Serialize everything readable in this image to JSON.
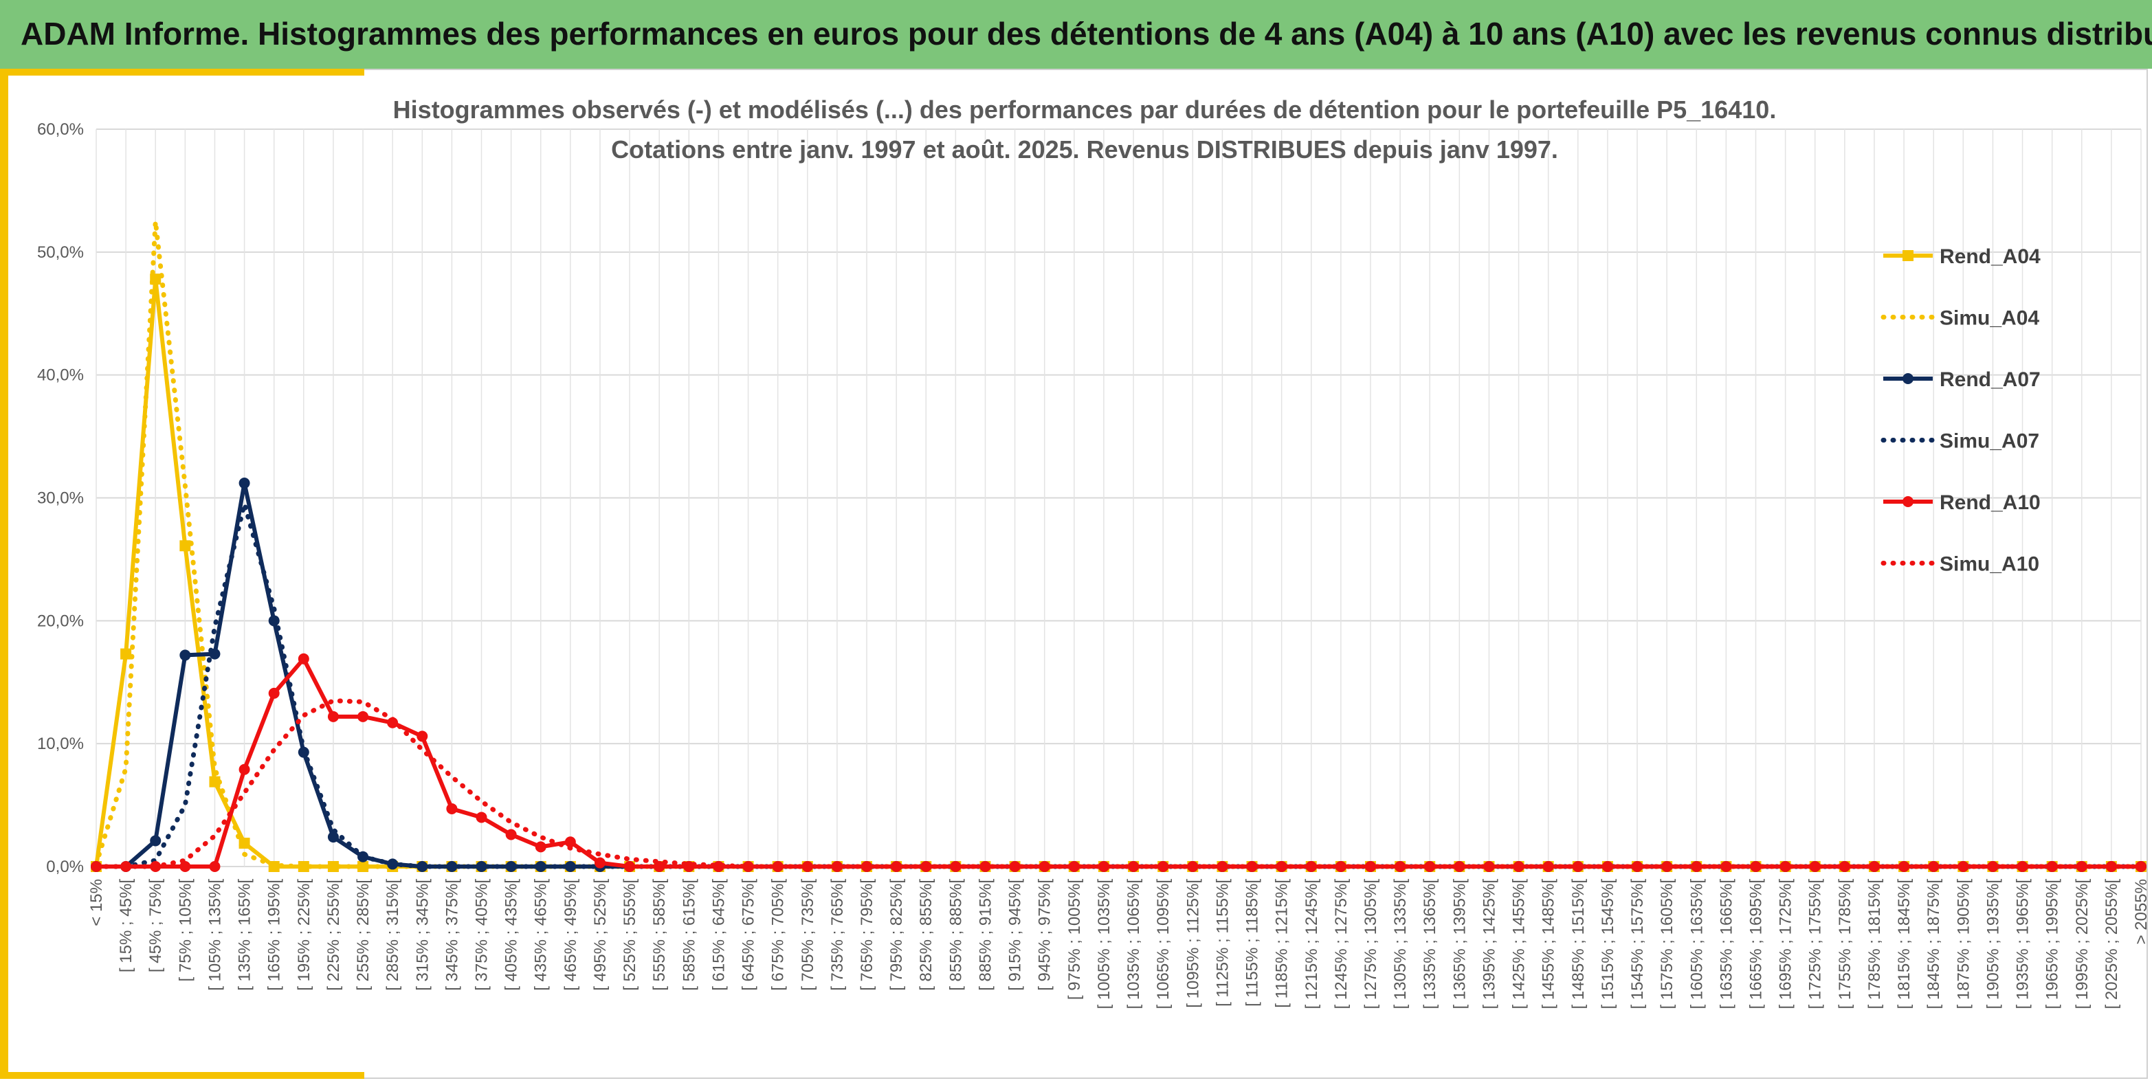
{
  "header": {
    "title": "ADAM Informe. Histogrammes des performances en euros pour des détentions de 4 ans (A04) à 10 ans (A10) avec les revenus connus distribués"
  },
  "chart_data": {
    "type": "line",
    "title_lines": [
      "Histogrammes observés (-) et modélisés (...) des performances par durées de détention pour le portefeuille P5_16410.",
      "Cotations entre janv. 1997 et août. 2025. Revenus DISTRIBUES depuis janv 1997."
    ],
    "ylim": [
      0,
      60
    ],
    "ytick_labels": [
      "0,0%",
      "10,0%",
      "20,0%",
      "30,0%",
      "40,0%",
      "50,0%",
      "60,0%"
    ],
    "grid": true,
    "legend_position": "right",
    "categories": [
      "< 15%",
      "[ 15% ; 45%[",
      "[ 45% ; 75%[",
      "[ 75% ; 105%[",
      "[ 105% ; 135%[",
      "[ 135% ; 165%[",
      "[ 165% ; 195%[",
      "[ 195% ; 225%[",
      "[ 225% ; 255%[",
      "[ 255% ; 285%[",
      "[ 285% ; 315%[",
      "[ 315% ; 345%[",
      "[ 345% ; 375%[",
      "[ 375% ; 405%[",
      "[ 405% ; 435%[",
      "[ 435% ; 465%[",
      "[ 465% ; 495%[",
      "[ 495% ; 525%[",
      "[ 525% ; 555%[",
      "[ 555% ; 585%[",
      "[ 585% ; 615%[",
      "[ 615% ; 645%[",
      "[ 645% ; 675%[",
      "[ 675% ; 705%[",
      "[ 705% ; 735%[",
      "[ 735% ; 765%[",
      "[ 765% ; 795%[",
      "[ 795% ; 825%[",
      "[ 825% ; 855%[",
      "[ 855% ; 885%[",
      "[ 885% ; 915%[",
      "[ 915% ; 945%[",
      "[ 945% ; 975%[",
      "[ 975% ; 1005%[",
      "[ 1005% ; 1035%[",
      "[ 1035% ; 1065%[",
      "[ 1065% ; 1095%[",
      "[ 1095% ; 1125%[",
      "[ 1125% ; 1155%[",
      "[ 1155% ; 1185%[",
      "[ 1185% ; 1215%[",
      "[ 1215% ; 1245%[",
      "[ 1245% ; 1275%[",
      "[ 1275% ; 1305%[",
      "[ 1305% ; 1335%[",
      "[ 1335% ; 1365%[",
      "[ 1365% ; 1395%[",
      "[ 1395% ; 1425%[",
      "[ 1425% ; 1455%[",
      "[ 1455% ; 1485%[",
      "[ 1485% ; 1515%[",
      "[ 1515% ; 1545%[",
      "[ 1545% ; 1575%[",
      "[ 1575% ; 1605%[",
      "[ 1605% ; 1635%[",
      "[ 1635% ; 1665%[",
      "[ 1665% ; 1695%[",
      "[ 1695% ; 1725%[",
      "[ 1725% ; 1755%[",
      "[ 1755% ; 1785%[",
      "[ 1785% ; 1815%[",
      "[ 1815% ; 1845%[",
      "[ 1845% ; 1875%[",
      "[ 1875% ; 1905%[",
      "[ 1905% ; 1935%[",
      "[ 1935% ; 1965%[",
      "[ 1965% ; 1995%[",
      "[ 1995% ; 2025%[",
      "[ 2025% ; 2055%[",
      "> 2055%"
    ],
    "series": [
      {
        "name": "Rend_A04",
        "style": "solid",
        "marker": "square",
        "color": "#f5c200",
        "values": [
          0,
          17.3,
          47.8,
          26.1,
          6.9,
          1.9,
          0,
          0,
          0,
          0,
          0,
          0,
          0,
          0,
          0,
          0,
          0,
          0,
          0,
          0,
          0,
          0,
          0,
          0,
          0,
          0,
          0,
          0,
          0,
          0,
          0,
          0,
          0,
          0,
          0,
          0,
          0,
          0,
          0,
          0,
          0,
          0,
          0,
          0,
          0,
          0,
          0,
          0,
          0,
          0,
          0,
          0,
          0,
          0,
          0,
          0,
          0,
          0,
          0,
          0,
          0,
          0,
          0,
          0,
          0,
          0,
          0,
          0,
          0,
          0
        ]
      },
      {
        "name": "Simu_A04",
        "style": "dotted",
        "marker": "none",
        "color": "#f5c200",
        "values": [
          0.2,
          8,
          52.5,
          31,
          8,
          1,
          0.1,
          0,
          0,
          0,
          0,
          0,
          0,
          0,
          0,
          0,
          0,
          0,
          0,
          0,
          0,
          0,
          0,
          0,
          0,
          0,
          0,
          0,
          0,
          0,
          0,
          0,
          0,
          0,
          0,
          0,
          0,
          0,
          0,
          0,
          0,
          0,
          0,
          0,
          0,
          0,
          0,
          0,
          0,
          0,
          0,
          0,
          0,
          0,
          0,
          0,
          0,
          0,
          0,
          0,
          0,
          0,
          0,
          0,
          0,
          0,
          0,
          0,
          0,
          0
        ]
      },
      {
        "name": "Rend_A07",
        "style": "solid",
        "marker": "circle",
        "color": "#0f2b5b",
        "values": [
          0,
          0,
          2.1,
          17.2,
          17.3,
          31.2,
          20,
          9.3,
          2.4,
          0.8,
          0.2,
          0,
          0,
          0,
          0,
          0,
          0,
          0,
          0,
          0,
          0,
          0,
          0,
          0,
          0,
          0,
          0,
          0,
          0,
          0,
          0,
          0,
          0,
          0,
          0,
          0,
          0,
          0,
          0,
          0,
          0,
          0,
          0,
          0,
          0,
          0,
          0,
          0,
          0,
          0,
          0,
          0,
          0,
          0,
          0,
          0,
          0,
          0,
          0,
          0,
          0,
          0,
          0,
          0,
          0,
          0,
          0,
          0,
          0,
          0
        ]
      },
      {
        "name": "Simu_A07",
        "style": "dotted",
        "marker": "none",
        "color": "#0f2b5b",
        "values": [
          0,
          0,
          0.5,
          5,
          19.5,
          29.5,
          21,
          9.5,
          3,
          0.8,
          0.2,
          0,
          0,
          0,
          0,
          0,
          0,
          0,
          0,
          0,
          0,
          0,
          0,
          0,
          0,
          0,
          0,
          0,
          0,
          0,
          0,
          0,
          0,
          0,
          0,
          0,
          0,
          0,
          0,
          0,
          0,
          0,
          0,
          0,
          0,
          0,
          0,
          0,
          0,
          0,
          0,
          0,
          0,
          0,
          0,
          0,
          0,
          0,
          0,
          0,
          0,
          0,
          0,
          0,
          0,
          0,
          0,
          0,
          0,
          0
        ]
      },
      {
        "name": "Rend_A10",
        "style": "solid",
        "marker": "circle",
        "color": "#ee1111",
        "values": [
          0,
          0,
          0,
          0,
          0,
          7.9,
          14.1,
          16.9,
          12.2,
          12.2,
          11.7,
          10.6,
          4.7,
          4,
          2.6,
          1.6,
          2,
          0.3,
          0,
          0,
          0,
          0,
          0,
          0,
          0,
          0,
          0,
          0,
          0,
          0,
          0,
          0,
          0,
          0,
          0,
          0,
          0,
          0,
          0,
          0,
          0,
          0,
          0,
          0,
          0,
          0,
          0,
          0,
          0,
          0,
          0,
          0,
          0,
          0,
          0,
          0,
          0,
          0,
          0,
          0,
          0,
          0,
          0,
          0,
          0,
          0,
          0,
          0,
          0,
          0
        ]
      },
      {
        "name": "Simu_A10",
        "style": "dotted",
        "marker": "none",
        "color": "#ee1111",
        "values": [
          0,
          0,
          0,
          0.5,
          2.5,
          6,
          9.5,
          12.3,
          13.5,
          13.4,
          12,
          9.5,
          7.3,
          5.3,
          3.6,
          2.4,
          1.5,
          1,
          0.6,
          0.4,
          0.2,
          0.1,
          0,
          0,
          0,
          0,
          0,
          0,
          0,
          0,
          0,
          0,
          0,
          0,
          0,
          0,
          0,
          0,
          0,
          0,
          0,
          0,
          0,
          0,
          0,
          0,
          0,
          0,
          0,
          0,
          0,
          0,
          0,
          0,
          0,
          0,
          0,
          0,
          0,
          0,
          0,
          0,
          0,
          0,
          0,
          0,
          0,
          0,
          0,
          0
        ]
      }
    ]
  }
}
